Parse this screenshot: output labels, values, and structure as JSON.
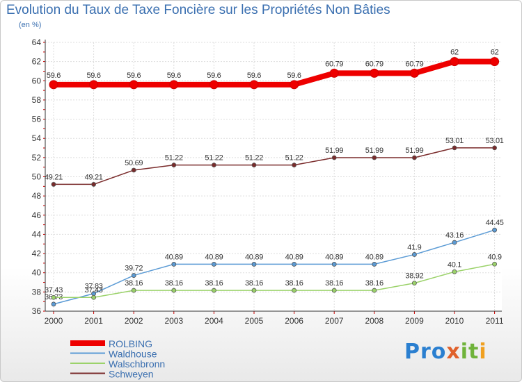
{
  "chart_data": {
    "type": "line",
    "title": "Evolution du Taux de Taxe Foncière sur les Propriétés Non Bâties",
    "subtitle": "(en %)",
    "categories": [
      "2000",
      "2001",
      "2002",
      "2003",
      "2004",
      "2005",
      "2006",
      "2007",
      "2008",
      "2009",
      "2010",
      "2011"
    ],
    "ylim": [
      36,
      64
    ],
    "yticks": [
      36,
      38,
      40,
      42,
      44,
      46,
      48,
      50,
      52,
      54,
      56,
      58,
      60,
      62,
      64
    ],
    "grid": true,
    "series": [
      {
        "name": "ROLBING",
        "color": "#ee0000",
        "emphasis": true,
        "values": [
          59.6,
          59.6,
          59.6,
          59.6,
          59.6,
          59.6,
          59.6,
          60.79,
          60.79,
          60.79,
          62,
          62
        ],
        "labels": [
          "59.6",
          "59.6",
          "59.6",
          "59.6",
          "59.6",
          "59.6",
          "59.6",
          "60.79",
          "60.79",
          "60.79",
          "62",
          "62"
        ]
      },
      {
        "name": "Waldhouse",
        "color": "#5b9bd5",
        "emphasis": false,
        "values": [
          36.73,
          37.83,
          39.72,
          40.89,
          40.89,
          40.89,
          40.89,
          40.89,
          40.89,
          41.9,
          43.16,
          44.45
        ],
        "labels": [
          "36.73",
          "37.83",
          "39.72",
          "40.89",
          "40.89",
          "40.89",
          "40.89",
          "40.89",
          "40.89",
          "41.9",
          "43.16",
          "44.45"
        ]
      },
      {
        "name": "Walschbronn",
        "color": "#9bd26a",
        "emphasis": false,
        "values": [
          37.43,
          37.43,
          38.16,
          38.16,
          38.16,
          38.16,
          38.16,
          38.16,
          38.16,
          38.92,
          40.1,
          40.9
        ],
        "labels": [
          "37.43",
          "37.43",
          "38.16",
          "38.16",
          "38.16",
          "38.16",
          "38.16",
          "38.16",
          "38.16",
          "38.92",
          "40.1",
          "40.9"
        ]
      },
      {
        "name": "Schweyen",
        "color": "#7a2b2b",
        "emphasis": false,
        "values": [
          49.21,
          49.21,
          50.69,
          51.22,
          51.22,
          51.22,
          51.22,
          51.99,
          51.99,
          51.99,
          53.01,
          53.01
        ],
        "labels": [
          "49.21",
          "49.21",
          "50.69",
          "51.22",
          "51.22",
          "51.22",
          "51.22",
          "51.99",
          "51.99",
          "51.99",
          "53.01",
          "53.01"
        ]
      }
    ]
  },
  "logo": {
    "p1": "Pro",
    "p2": "x",
    "p3": "it",
    "p4": "i"
  }
}
